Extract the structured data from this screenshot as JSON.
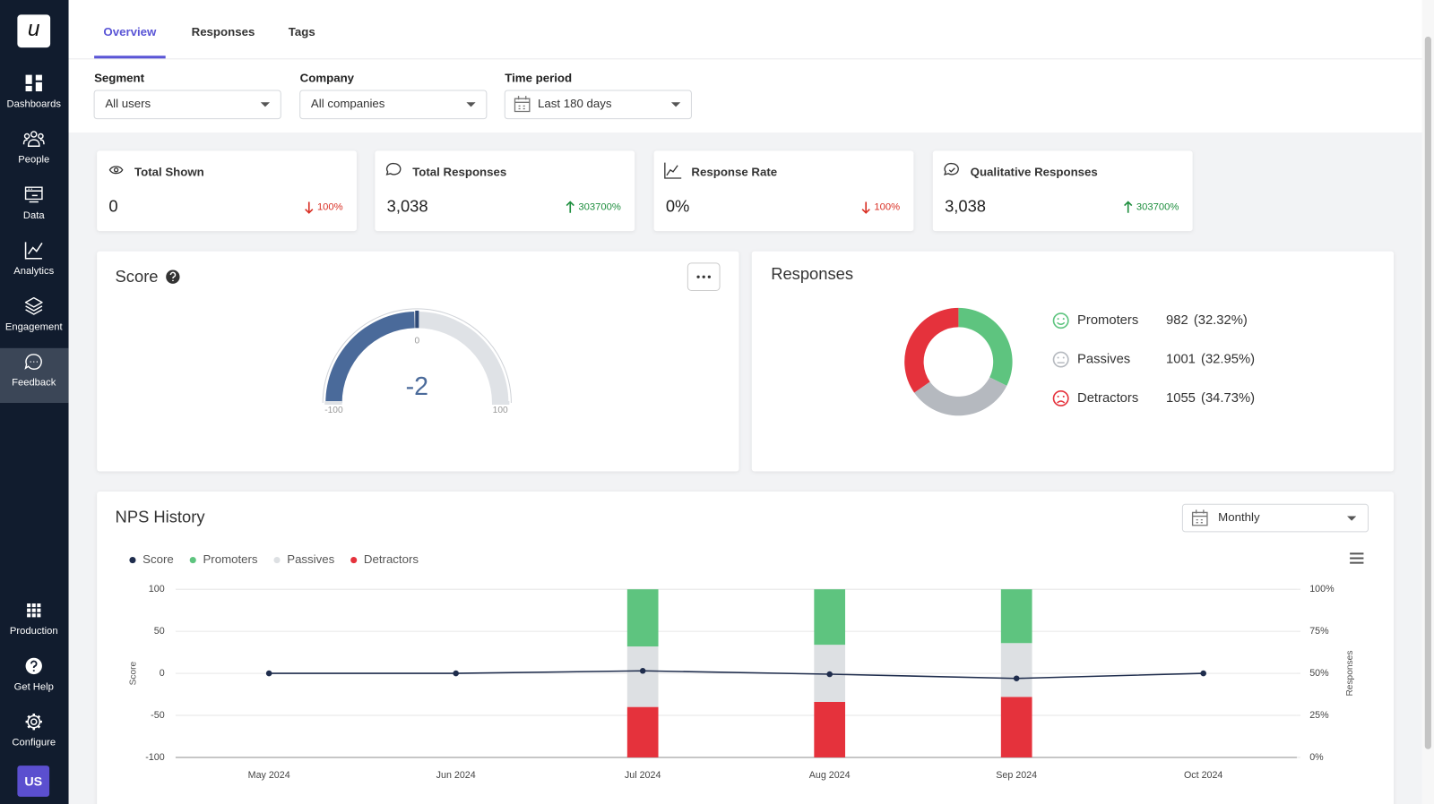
{
  "sidebar": {
    "logo": "u",
    "items": [
      "Dashboards",
      "People",
      "Data",
      "Analytics",
      "Engagement",
      "Feedback"
    ],
    "active": 5,
    "bottom_items": [
      "Production",
      "Get Help",
      "Configure"
    ],
    "avatar": "US"
  },
  "tabs": [
    "Overview",
    "Responses",
    "Tags"
  ],
  "active_tab": 0,
  "filters": [
    {
      "label": "Segment",
      "value": "All users"
    },
    {
      "label": "Company",
      "value": "All companies"
    },
    {
      "label": "Time period",
      "value": "Last 180 days"
    }
  ],
  "stats": [
    {
      "title": "Total Shown",
      "value": "0",
      "change": "100%",
      "direction": "down"
    },
    {
      "title": "Total Responses",
      "value": "3,038",
      "change": "303700%",
      "direction": "up"
    },
    {
      "title": "Response Rate",
      "value": "0%",
      "change": "100%",
      "direction": "down"
    },
    {
      "title": "Qualitative Responses",
      "value": "3,038",
      "change": "303700%",
      "direction": "up"
    }
  ],
  "chart_data": [
    {
      "type": "gauge",
      "title": "Score",
      "value": -2,
      "ylim": [
        -100,
        100
      ],
      "yticks": [
        -100,
        0,
        100
      ],
      "color": "#4a6a9a",
      "track_color": "#dfe2e6",
      "tick_color": "#2f4a77"
    },
    {
      "type": "pie",
      "title": "Responses",
      "donut": true,
      "categories": [
        "Promoters",
        "Passives",
        "Detractors"
      ],
      "values": [
        982,
        1001,
        1055
      ],
      "percent_labels": [
        "(32.32%)",
        "(32.95%)",
        "(34.73%)"
      ],
      "colors": [
        "#5ec47f",
        "#b5b9bf",
        "#e5323c"
      ]
    },
    {
      "type": "bar",
      "title": "NPS History",
      "period": "Monthly",
      "stacked": true,
      "grid": true,
      "categories": [
        "May 2024",
        "Jun 2024",
        "Jul 2024",
        "Aug 2024",
        "Sep 2024",
        "Oct 2024"
      ],
      "series": [
        {
          "name": "Score",
          "type": "line",
          "color": "#1f2d4d",
          "values": [
            0,
            0,
            3,
            -1,
            -6,
            0
          ]
        },
        {
          "name": "Promoters",
          "color": "#5ec47f",
          "axis": "y2",
          "values": [
            null,
            null,
            34,
            33,
            32,
            null
          ]
        },
        {
          "name": "Passives",
          "color": "#dde0e3",
          "axis": "y2",
          "values": [
            null,
            null,
            36,
            34,
            32,
            null
          ]
        },
        {
          "name": "Detractors",
          "color": "#e5323c",
          "axis": "y2",
          "values": [
            null,
            null,
            30,
            33,
            36,
            null
          ]
        }
      ],
      "ylabel": "Score",
      "y2label": "Responses",
      "ylim": [
        -100,
        100
      ],
      "yticks": [
        100,
        50,
        0,
        -50,
        -100
      ],
      "y2lim": [
        0,
        100
      ],
      "y2ticks": [
        {
          "value": 100,
          "label": "100%"
        },
        {
          "value": 75,
          "label": "75%"
        },
        {
          "value": 50,
          "label": "50%"
        },
        {
          "value": 25,
          "label": "25%"
        },
        {
          "value": 0,
          "label": "0%"
        }
      ]
    }
  ]
}
